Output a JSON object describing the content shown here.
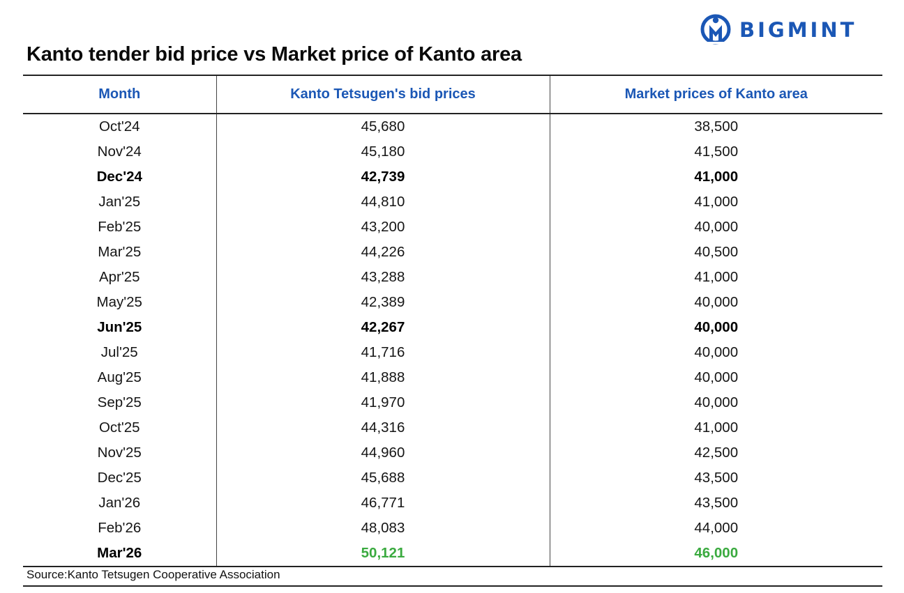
{
  "brand": {
    "name": "BIGMINT",
    "color": "#1b57b5",
    "icon": "bigmint-logo-icon"
  },
  "title": "Kanto tender bid price vs Market price of Kanto area",
  "source": "Source:Kanto Tetsugen Cooperative Association",
  "chart_data": {
    "type": "table",
    "title": "Kanto tender bid price vs Market price of Kanto area",
    "columns": [
      "Month",
      "Kanto Tetsugen's bid prices",
      "Market prices of Kanto area"
    ],
    "header_color": "#1b57b5",
    "highlight_color": "#3aaa3f",
    "rows": [
      {
        "month": "Oct'24",
        "bid": "45,680",
        "market": "38,500",
        "bold": false,
        "highlight": false
      },
      {
        "month": "Nov'24",
        "bid": "45,180",
        "market": "41,500",
        "bold": false,
        "highlight": false
      },
      {
        "month": "Dec'24",
        "bid": "42,739",
        "market": "41,000",
        "bold": true,
        "highlight": false
      },
      {
        "month": "Jan'25",
        "bid": "44,810",
        "market": "41,000",
        "bold": false,
        "highlight": false
      },
      {
        "month": "Feb'25",
        "bid": "43,200",
        "market": "40,000",
        "bold": false,
        "highlight": false
      },
      {
        "month": "Mar'25",
        "bid": "44,226",
        "market": "40,500",
        "bold": false,
        "highlight": false
      },
      {
        "month": "Apr'25",
        "bid": "43,288",
        "market": "41,000",
        "bold": false,
        "highlight": false
      },
      {
        "month": "May'25",
        "bid": "42,389",
        "market": "40,000",
        "bold": false,
        "highlight": false
      },
      {
        "month": "Jun'25",
        "bid": "42,267",
        "market": "40,000",
        "bold": true,
        "highlight": false
      },
      {
        "month": "Jul'25",
        "bid": "41,716",
        "market": "40,000",
        "bold": false,
        "highlight": false
      },
      {
        "month": "Aug'25",
        "bid": "41,888",
        "market": "40,000",
        "bold": false,
        "highlight": false
      },
      {
        "month": "Sep'25",
        "bid": "41,970",
        "market": "40,000",
        "bold": false,
        "highlight": false
      },
      {
        "month": "Oct'25",
        "bid": "44,316",
        "market": "41,000",
        "bold": false,
        "highlight": false
      },
      {
        "month": "Nov'25",
        "bid": "44,960",
        "market": "42,500",
        "bold": false,
        "highlight": false
      },
      {
        "month": "Dec'25",
        "bid": "45,688",
        "market": "43,500",
        "bold": false,
        "highlight": false
      },
      {
        "month": "Jan'26",
        "bid": "46,771",
        "market": "43,500",
        "bold": false,
        "highlight": false
      },
      {
        "month": "Feb'26",
        "bid": "48,083",
        "market": "44,000",
        "bold": false,
        "highlight": false
      },
      {
        "month": "Mar'26",
        "bid": "50,121",
        "market": "46,000",
        "bold": true,
        "highlight": true
      }
    ]
  }
}
